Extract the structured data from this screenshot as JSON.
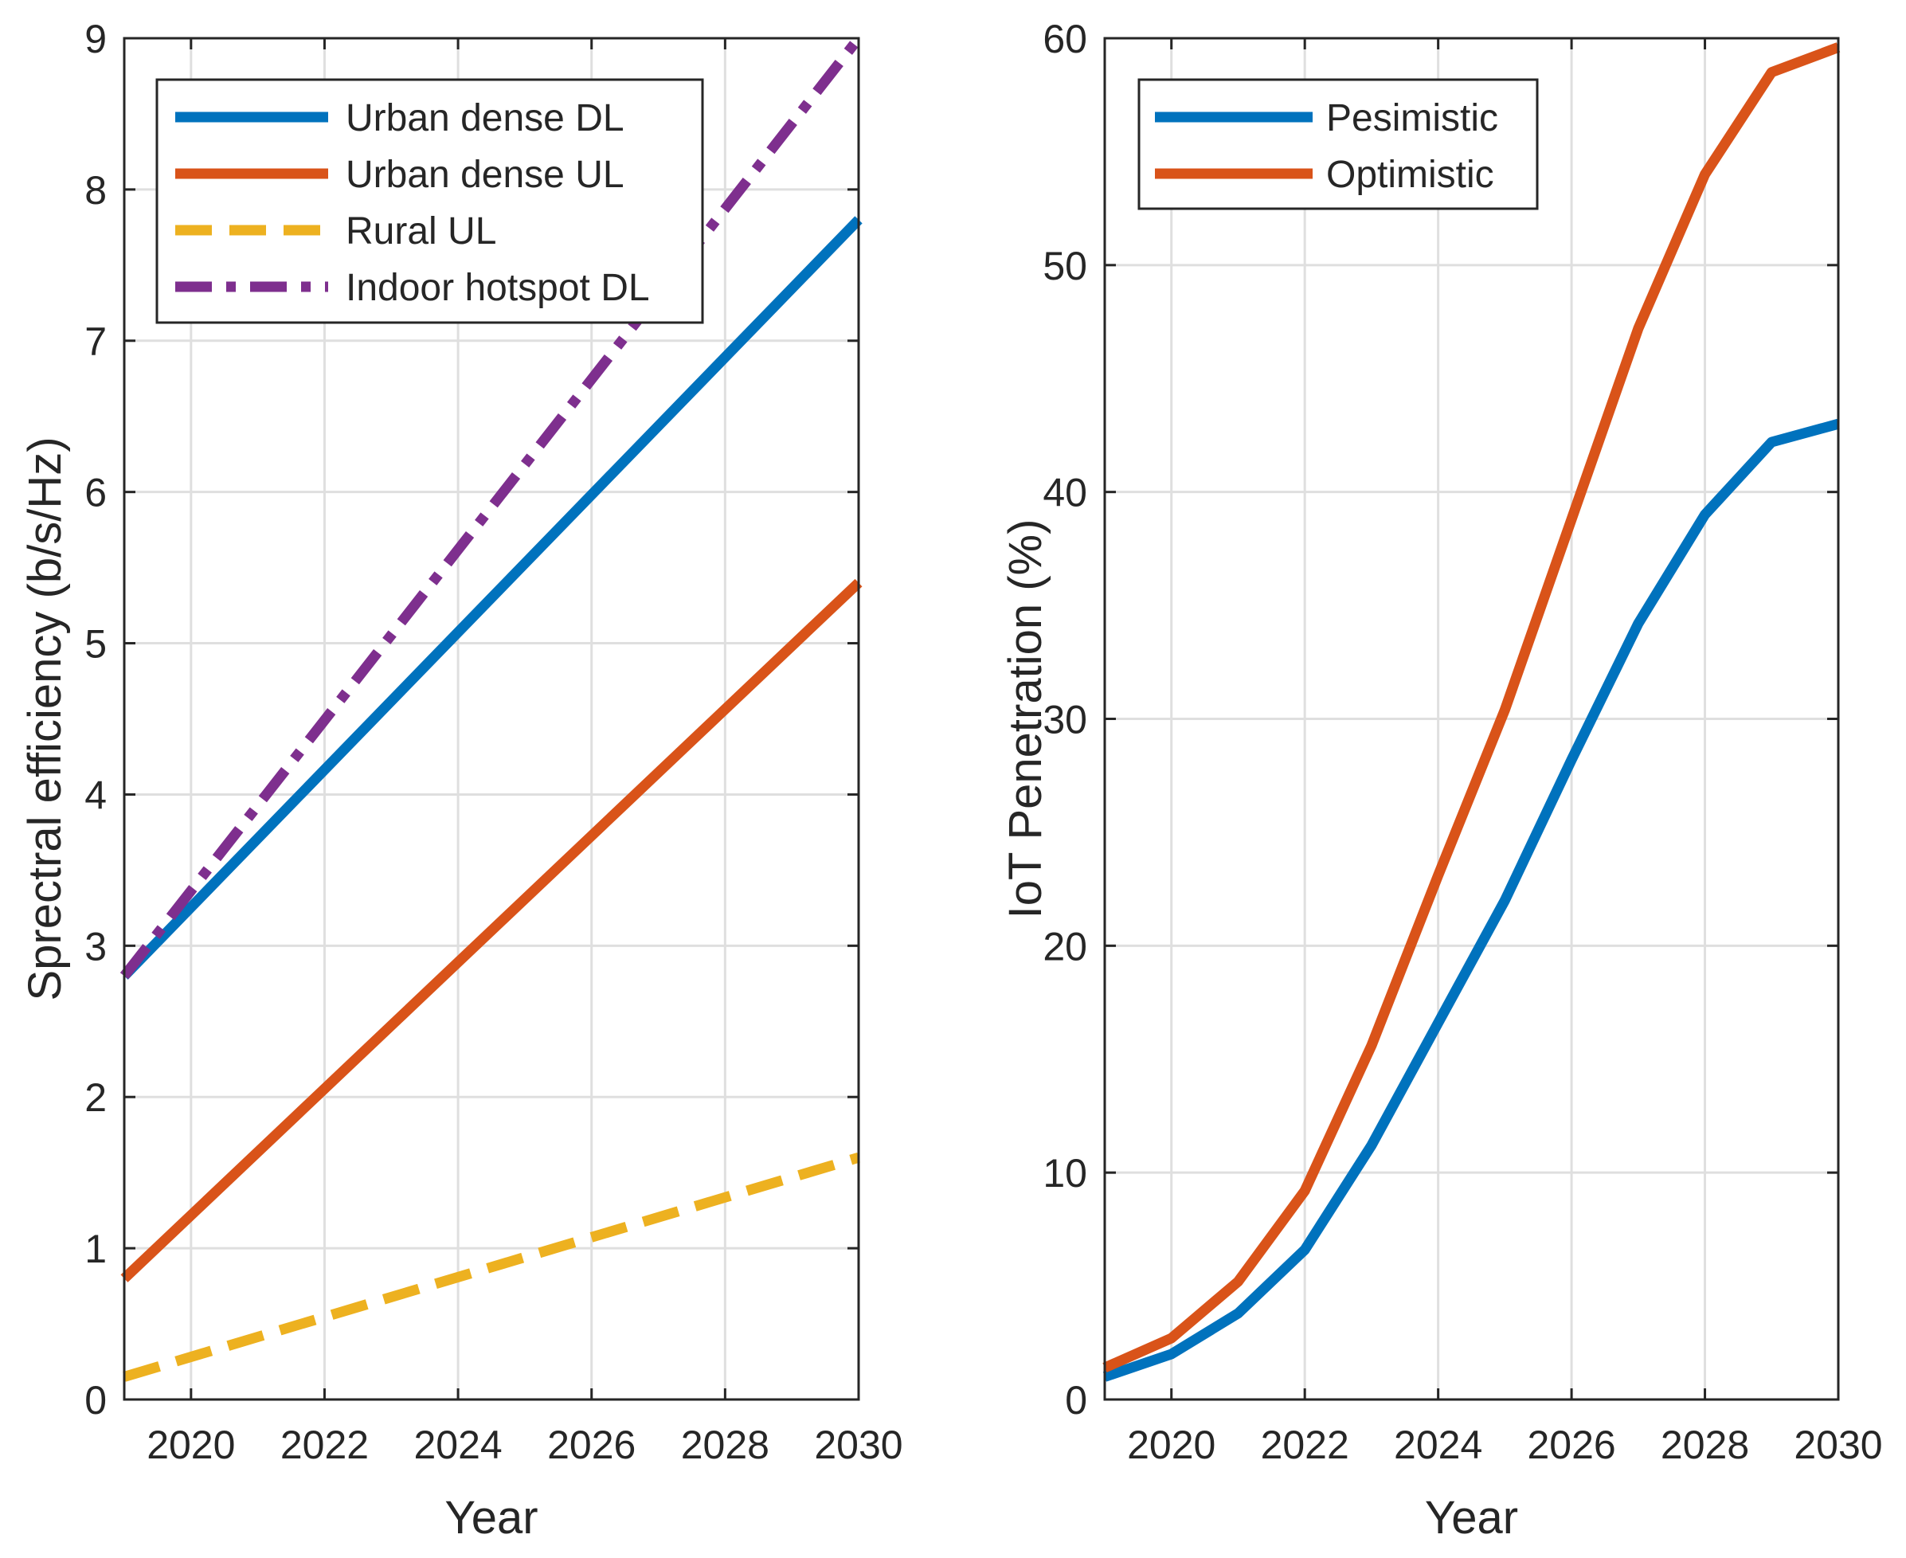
{
  "chart_data": [
    {
      "type": "line",
      "title": "",
      "xlabel": "Year",
      "ylabel": "Sprectral efficiency (b/s/Hz)",
      "xlim": [
        2019,
        2030
      ],
      "ylim": [
        0,
        9
      ],
      "xticks": [
        2020,
        2022,
        2024,
        2026,
        2028,
        2030
      ],
      "yticks": [
        0,
        1,
        2,
        3,
        4,
        5,
        6,
        7,
        8,
        9
      ],
      "grid": true,
      "legend_position": "top-left",
      "series": [
        {
          "name": "Urban dense DL",
          "color": "#0072BD",
          "style": "solid",
          "x": [
            2019,
            2030
          ],
          "values": [
            2.8,
            7.8
          ]
        },
        {
          "name": "Urban dense UL",
          "color": "#D95319",
          "style": "solid",
          "x": [
            2019,
            2030
          ],
          "values": [
            0.8,
            5.4
          ]
        },
        {
          "name": "Rural UL",
          "color": "#EDB120",
          "style": "dashed",
          "x": [
            2019,
            2030
          ],
          "values": [
            0.15,
            1.6
          ]
        },
        {
          "name": "Indoor hotspot DL",
          "color": "#7E2F8E",
          "style": "dashdot",
          "x": [
            2019,
            2030
          ],
          "values": [
            2.8,
            9.0
          ]
        }
      ]
    },
    {
      "type": "line",
      "title": "",
      "xlabel": "Year",
      "ylabel": "IoT Penetration (%)",
      "xlim": [
        2019,
        2030
      ],
      "ylim": [
        0,
        60
      ],
      "xticks": [
        2020,
        2022,
        2024,
        2026,
        2028,
        2030
      ],
      "yticks": [
        0,
        10,
        20,
        30,
        40,
        50,
        60
      ],
      "grid": true,
      "legend_position": "top-left",
      "series": [
        {
          "name": "Pesimistic",
          "color": "#0072BD",
          "style": "solid",
          "x": [
            2019,
            2020,
            2021,
            2022,
            2023,
            2024,
            2025,
            2026,
            2027,
            2028,
            2029,
            2030
          ],
          "values": [
            1.0,
            2.0,
            3.8,
            6.6,
            11.2,
            16.6,
            22.0,
            28.2,
            34.2,
            39.0,
            42.2,
            43.0
          ]
        },
        {
          "name": "Optimistic",
          "color": "#D95319",
          "style": "solid",
          "x": [
            2019,
            2020,
            2021,
            2022,
            2023,
            2024,
            2025,
            2026,
            2027,
            2028,
            2029,
            2030
          ],
          "values": [
            1.4,
            2.7,
            5.2,
            9.2,
            15.6,
            23.1,
            30.4,
            38.8,
            47.2,
            54.0,
            58.5,
            59.6
          ]
        }
      ]
    }
  ]
}
